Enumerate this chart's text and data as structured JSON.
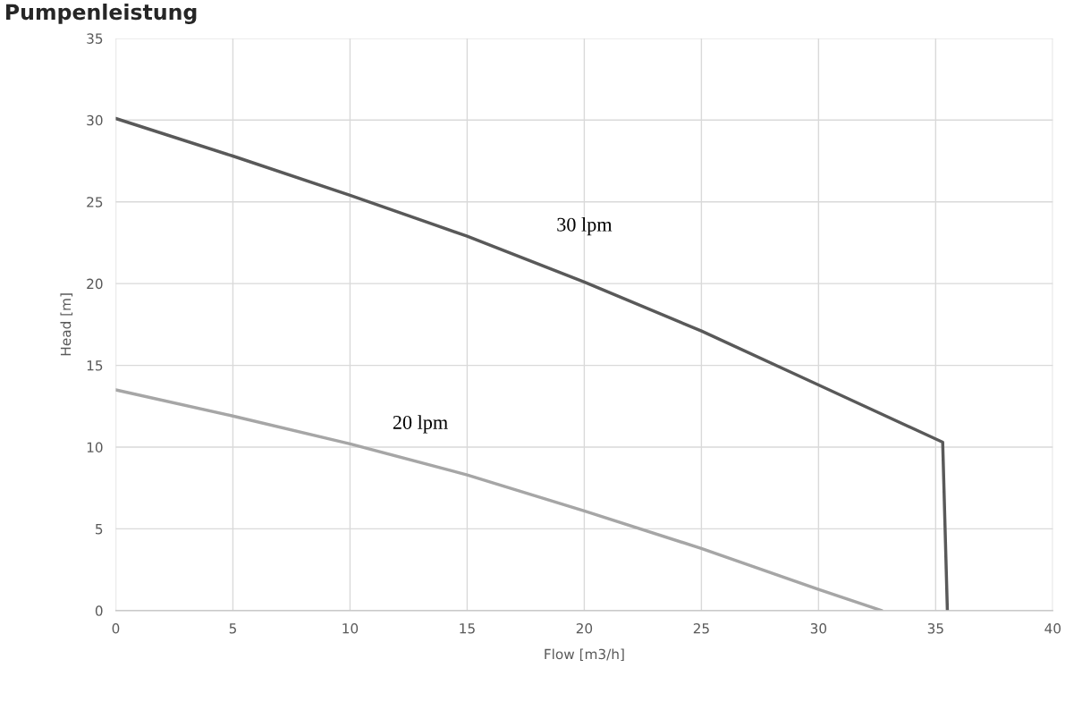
{
  "chart_data": {
    "type": "line",
    "title": "Pumpenleistung",
    "xlabel": "Flow [m3/h]",
    "ylabel": "Head [m]",
    "series": [
      {
        "name": "30 lpm",
        "color": "#595959",
        "x": [
          0,
          5,
          10,
          15,
          20,
          25,
          30,
          35.3,
          35.5
        ],
        "values": [
          30.1,
          27.8,
          25.4,
          22.9,
          20.1,
          17.1,
          13.8,
          10.3,
          0
        ]
      },
      {
        "name": "20 lpm",
        "color": "#a6a6a6",
        "x": [
          0,
          5,
          10,
          15,
          20,
          25,
          30,
          32.7
        ],
        "values": [
          13.5,
          11.9,
          10.2,
          8.3,
          6.1,
          3.8,
          1.3,
          0
        ]
      }
    ],
    "xlim": [
      0,
      40
    ],
    "xticks": [
      0,
      5,
      10,
      15,
      20,
      25,
      30,
      35,
      40
    ],
    "ylim": [
      0,
      35
    ],
    "yticks": [
      0,
      5,
      10,
      15,
      20,
      25,
      30,
      35
    ],
    "grid": true,
    "legend": false,
    "marker": "none",
    "line_style": "solid"
  }
}
